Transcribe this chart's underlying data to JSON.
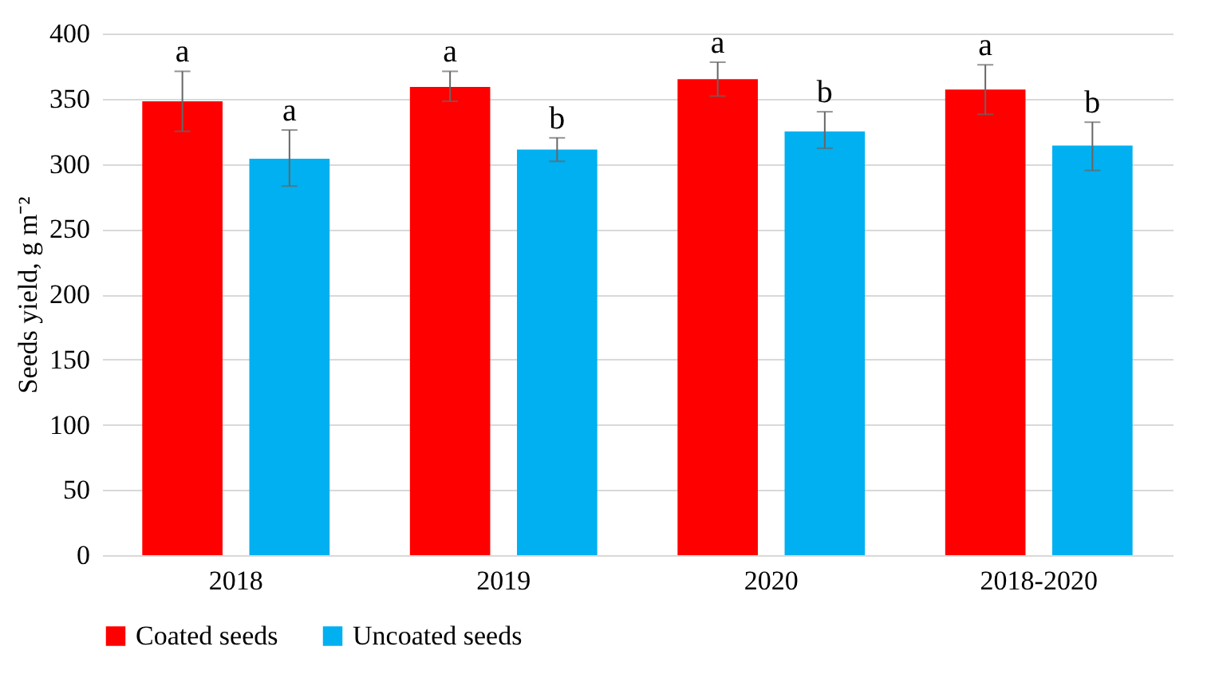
{
  "chart_data": {
    "type": "bar",
    "ylabel": "Seeds yield, g m⁻²",
    "categories": [
      "2018",
      "2019",
      "2020",
      "2018-2020"
    ],
    "series": [
      {
        "name": "Coated seeds",
        "color": "#ff0000",
        "values": [
          348,
          359,
          365,
          357
        ],
        "errors": [
          [
            325,
            371
          ],
          [
            348,
            371
          ],
          [
            352,
            378
          ],
          [
            338,
            376
          ]
        ]
      },
      {
        "name": "Uncoated seeds",
        "color": "#00b0f0",
        "values": [
          304,
          311,
          325,
          314
        ],
        "errors": [
          [
            283,
            326
          ],
          [
            302,
            320
          ],
          [
            312,
            340
          ],
          [
            295,
            332
          ]
        ]
      }
    ],
    "ylim": [
      0,
      400
    ],
    "yticks": [
      0,
      50,
      100,
      150,
      200,
      250,
      300,
      350,
      400
    ],
    "grid": "y",
    "legend": "bottom",
    "annotations": [
      "a",
      "a",
      "a",
      "b",
      "a",
      "b",
      "a",
      "b"
    ]
  }
}
